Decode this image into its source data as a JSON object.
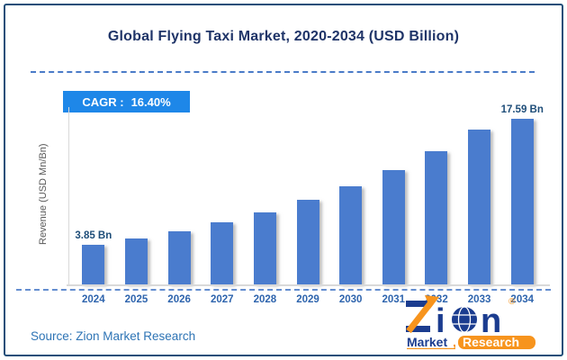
{
  "header": {
    "title": "Global Flying Taxi Market, 2020-2034 (USD Billion)"
  },
  "badge": {
    "label": "CAGR :",
    "value": "16.40%"
  },
  "chart_data": {
    "type": "bar",
    "title": "Global Flying Taxi Market, 2020-2034 (USD Billion)",
    "categories": [
      "2024",
      "2025",
      "2026",
      "2027",
      "2028",
      "2029",
      "2030",
      "2031",
      "2032",
      "2033",
      "2034"
    ],
    "values": [
      3.85,
      4.48,
      5.22,
      6.07,
      7.07,
      8.23,
      9.58,
      11.15,
      12.98,
      15.1,
      17.59
    ],
    "bar_labels": [
      "3.85 Bn",
      "",
      "",
      "",
      "",
      "",
      "",
      "",
      "",
      "",
      "17.59 Bn"
    ],
    "unit": "USD Billion",
    "cagr": "16.40%",
    "xlabel": "",
    "ylabel": "Revenue (USD Mn/Bn)",
    "ylim": [
      0,
      17.59
    ],
    "grid": false,
    "legend": false
  },
  "footer": {
    "source": "Source: Zion Market Research"
  },
  "logo": {
    "brand_i": "i",
    "brand_n": "n",
    "sub_left": "Market",
    "separator": ",",
    "sub_right": "Research",
    "registered": "®"
  },
  "colors": {
    "frame_border": "#1f4e79",
    "title": "#1f3468",
    "dashed_line": "#4a7bc8",
    "badge_bg": "#1e87e8",
    "badge_text": "#ffffff",
    "bar": "#4a7cce",
    "bar_label": "#1f4e79",
    "axis_line": "#d9d9d9",
    "year_label": "#2e64ad",
    "ylabel_text": "#595959",
    "source_text": "#2e74b5",
    "logo_blue": "#1b3c8f",
    "logo_orange": "#f7941d"
  }
}
